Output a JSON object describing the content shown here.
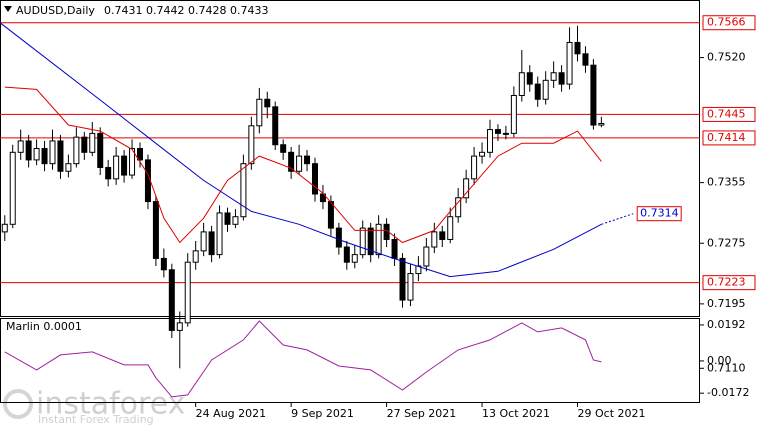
{
  "chart_data": [
    {
      "type": "candlestick",
      "title": "AUDUSD,Daily",
      "candles": [
        [
          0.729,
          0.7312,
          0.7278,
          0.73
        ],
        [
          0.73,
          0.7405,
          0.7295,
          0.7395
        ],
        [
          0.7395,
          0.7425,
          0.7385,
          0.741
        ],
        [
          0.741,
          0.7418,
          0.7375,
          0.7385
        ],
        [
          0.7385,
          0.7412,
          0.7378,
          0.74
        ],
        [
          0.74,
          0.741,
          0.737,
          0.738
        ],
        [
          0.738,
          0.7425,
          0.7372,
          0.741
        ],
        [
          0.741,
          0.7418,
          0.736,
          0.737
        ],
        [
          0.737,
          0.7392,
          0.7362,
          0.738
        ],
        [
          0.738,
          0.7428,
          0.7375,
          0.7415
        ],
        [
          0.7415,
          0.7422,
          0.7385,
          0.7395
        ],
        [
          0.7395,
          0.7435,
          0.739,
          0.742
        ],
        [
          0.742,
          0.7428,
          0.7365,
          0.7375
        ],
        [
          0.7375,
          0.7385,
          0.735,
          0.736
        ],
        [
          0.736,
          0.7402,
          0.7352,
          0.739
        ],
        [
          0.739,
          0.7398,
          0.7355,
          0.7365
        ],
        [
          0.7365,
          0.7412,
          0.736,
          0.74
        ],
        [
          0.74,
          0.7408,
          0.7375,
          0.7385
        ],
        [
          0.7385,
          0.7392,
          0.732,
          0.733
        ],
        [
          0.733,
          0.7338,
          0.7245,
          0.7255
        ],
        [
          0.7255,
          0.7268,
          0.723,
          0.724
        ],
        [
          0.724,
          0.7248,
          0.715,
          0.716
        ],
        [
          0.716,
          0.7185,
          0.711,
          0.717
        ],
        [
          0.717,
          0.7262,
          0.7165,
          0.725
        ],
        [
          0.725,
          0.7278,
          0.724,
          0.7265
        ],
        [
          0.7265,
          0.7302,
          0.7258,
          0.729
        ],
        [
          0.729,
          0.7298,
          0.725,
          0.726
        ],
        [
          0.726,
          0.7325,
          0.7255,
          0.7315
        ],
        [
          0.7315,
          0.7322,
          0.729,
          0.73
        ],
        [
          0.73,
          0.732,
          0.7295,
          0.731
        ],
        [
          0.731,
          0.7392,
          0.7305,
          0.738
        ],
        [
          0.738,
          0.7442,
          0.7372,
          0.743
        ],
        [
          0.743,
          0.748,
          0.742,
          0.7465
        ],
        [
          0.7465,
          0.7475,
          0.744,
          0.7455
        ],
        [
          0.7455,
          0.7462,
          0.7398,
          0.7405
        ],
        [
          0.7405,
          0.7412,
          0.7385,
          0.7395
        ],
        [
          0.7395,
          0.7402,
          0.736,
          0.737
        ],
        [
          0.737,
          0.7405,
          0.7365,
          0.739
        ],
        [
          0.739,
          0.7398,
          0.737,
          0.738
        ],
        [
          0.738,
          0.7388,
          0.733,
          0.734
        ],
        [
          0.734,
          0.7352,
          0.732,
          0.733
        ],
        [
          0.733,
          0.7338,
          0.7285,
          0.7295
        ],
        [
          0.7295,
          0.7302,
          0.726,
          0.727
        ],
        [
          0.727,
          0.7278,
          0.724,
          0.725
        ],
        [
          0.725,
          0.7272,
          0.7242,
          0.726
        ],
        [
          0.726,
          0.7305,
          0.7255,
          0.7295
        ],
        [
          0.7295,
          0.7302,
          0.725,
          0.726
        ],
        [
          0.726,
          0.7312,
          0.7255,
          0.73
        ],
        [
          0.73,
          0.7308,
          0.727,
          0.728
        ],
        [
          0.728,
          0.7288,
          0.7245,
          0.7255
        ],
        [
          0.7255,
          0.7262,
          0.719,
          0.72
        ],
        [
          0.72,
          0.7248,
          0.7192,
          0.7235
        ],
        [
          0.7235,
          0.7258,
          0.7225,
          0.7245
        ],
        [
          0.7245,
          0.7282,
          0.7238,
          0.727
        ],
        [
          0.727,
          0.7302,
          0.7262,
          0.729
        ],
        [
          0.729,
          0.7298,
          0.727,
          0.728
        ],
        [
          0.728,
          0.7322,
          0.7275,
          0.731
        ],
        [
          0.731,
          0.7348,
          0.7302,
          0.7335
        ],
        [
          0.7335,
          0.7372,
          0.7328,
          0.736
        ],
        [
          0.736,
          0.7402,
          0.7352,
          0.739
        ],
        [
          0.739,
          0.7408,
          0.738,
          0.7395
        ],
        [
          0.7395,
          0.7438,
          0.7388,
          0.7425
        ],
        [
          0.7425,
          0.7432,
          0.741,
          0.742
        ],
        [
          0.742,
          0.743,
          0.7412,
          0.742
        ],
        [
          0.742,
          0.7482,
          0.7415,
          0.747
        ],
        [
          0.747,
          0.753,
          0.7462,
          0.75
        ],
        [
          0.75,
          0.751,
          0.7475,
          0.7485
        ],
        [
          0.7485,
          0.7495,
          0.7455,
          0.7465
        ],
        [
          0.7465,
          0.7502,
          0.7458,
          0.749
        ],
        [
          0.749,
          0.7515,
          0.748,
          0.75
        ],
        [
          0.75,
          0.751,
          0.7475,
          0.7485
        ],
        [
          0.7485,
          0.756,
          0.7478,
          0.754
        ],
        [
          0.754,
          0.7562,
          0.7515,
          0.7525
        ],
        [
          0.7525,
          0.7535,
          0.75,
          0.751
        ],
        [
          0.751,
          0.7518,
          0.7425,
          0.7431
        ],
        [
          0.7431,
          0.7442,
          0.7428,
          0.7433
        ]
      ],
      "xlim": [
        -0.6,
        87.4
      ],
      "xticks": [
        {
          "value": 24,
          "label": "24 Aug 2021"
        },
        {
          "value": 36,
          "label": "9 Sep 2021"
        },
        {
          "value": 48,
          "label": "27 Sep 2021"
        },
        {
          "value": 60,
          "label": "13 Oct 2021"
        },
        {
          "value": 72,
          "label": "29 Oct 2021"
        }
      ],
      "ylim": [
        0.7179,
        0.7596
      ],
      "yticks": [
        {
          "value": 0.752,
          "label": "0.7520"
        },
        0.7355,
        0.7275,
        0.7195,
        {
          "value": 0.711,
          "label": "0.7110"
        }
      ],
      "levels": {
        "color": "#e00000",
        "values": [
          0.7566,
          0.7445,
          0.7414,
          0.7223
        ]
      },
      "lines": [
        {
          "color": "#e00000",
          "x": [
            0,
            4,
            8,
            12,
            16,
            18,
            20,
            22,
            25,
            28,
            32,
            36,
            40,
            44,
            48,
            50,
            54,
            56,
            58,
            62,
            65,
            69,
            72,
            75
          ],
          "values": [
            0.7481,
            0.7478,
            0.7431,
            0.7423,
            0.7399,
            0.7366,
            0.7308,
            0.7276,
            0.7308,
            0.7358,
            0.739,
            0.7374,
            0.7341,
            0.7292,
            0.7292,
            0.7276,
            0.7292,
            0.7317,
            0.7341,
            0.739,
            0.7407,
            0.7407,
            0.7423,
            0.7383
          ]
        },
        {
          "color": "#0000c8",
          "x": [
            -0.6,
            12,
            18,
            25,
            31,
            37,
            43,
            50,
            56,
            62,
            69,
            75
          ],
          "values": [
            0.7566,
            0.7464,
            0.7415,
            0.7358,
            0.7317,
            0.73,
            0.7276,
            0.7251,
            0.7231,
            0.7238,
            0.7267,
            0.73
          ]
        },
        {
          "color": "#0000c8",
          "dashed": true,
          "x": [
            75,
            79
          ],
          "values": [
            0.73,
            0.7314
          ]
        }
      ]
    },
    {
      "type": "line",
      "title": "Marlin 0.0001",
      "color": "#a020a0",
      "x": [
        0,
        4,
        7,
        11,
        15,
        18,
        19,
        21,
        23,
        26,
        30,
        32,
        35,
        38,
        42,
        46,
        50,
        53,
        57,
        61,
        65,
        67,
        70,
        73,
        74,
        75
      ],
      "values": [
        0.0048,
        -0.0048,
        0.0032,
        0.0048,
        -0.0021,
        -0.0021,
        -0.009,
        -0.0192,
        -0.0181,
        0.0005,
        0.0112,
        0.0213,
        0.0085,
        0.0059,
        -0.0027,
        -0.0048,
        -0.0155,
        -0.0059,
        0.0059,
        0.0112,
        0.0203,
        0.0155,
        0.0176,
        0.0112,
        0.0005,
        -0.0005
      ],
      "ylim": [
        -0.0219,
        0.0229
      ],
      "yticks": [
        0.0192,
        {
          "value": 0,
          "label": "0.00"
        },
        -0.0172
      ]
    }
  ],
  "watermark": {
    "brand": "instaforex",
    "tagline": "Instant Forex Trading"
  }
}
